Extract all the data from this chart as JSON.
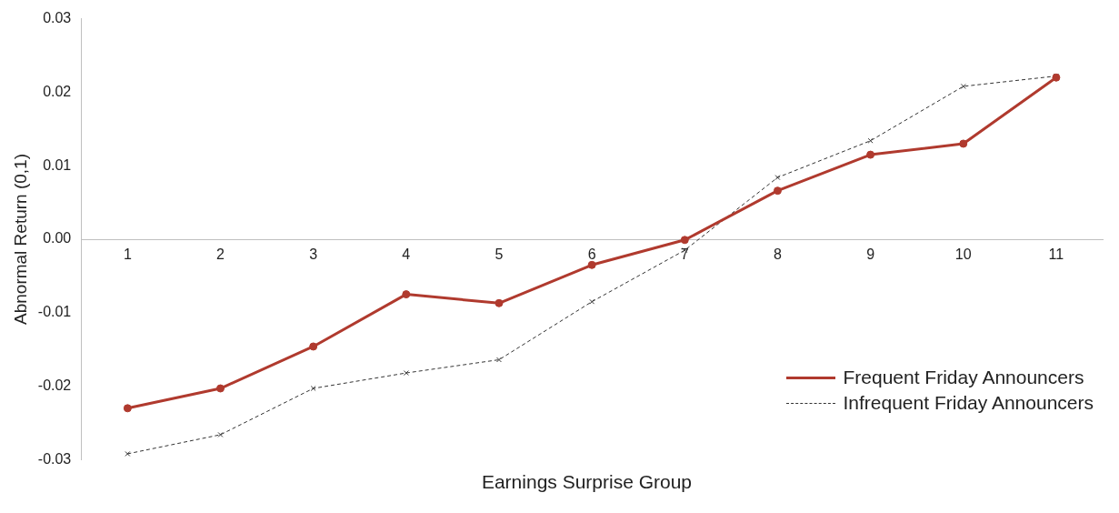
{
  "chart_data": {
    "type": "line",
    "xlabel": "Earnings Surprise Group",
    "ylabel": "Abnormal Return (0,1)",
    "categories": [
      "1",
      "2",
      "3",
      "4",
      "5",
      "6",
      "7",
      "8",
      "9",
      "10",
      "11"
    ],
    "series": [
      {
        "name": "Frequent Friday Announcers",
        "color": "#b03a2e",
        "marker": "circle",
        "line_style": "solid",
        "values": [
          -0.023,
          -0.0203,
          -0.0146,
          -0.0075,
          -0.0087,
          -0.0035,
          -0.0001,
          0.0066,
          0.0115,
          0.013,
          0.022
        ]
      },
      {
        "name": "Infrequent Friday Announcers",
        "color": "#333333",
        "marker": "cross",
        "line_style": "dashed",
        "values": [
          -0.0292,
          -0.0266,
          -0.0203,
          -0.0182,
          -0.0164,
          -0.0085,
          -0.0015,
          0.0084,
          0.0134,
          0.0208,
          0.0222
        ]
      }
    ],
    "ylim": [
      -0.03,
      0.03
    ],
    "yticks": [
      {
        "value": -0.03,
        "label": "-0.03"
      },
      {
        "value": -0.02,
        "label": "-0.02"
      },
      {
        "value": -0.01,
        "label": "-0.01"
      },
      {
        "value": 0,
        "label": "0.00"
      },
      0.01,
      0.02,
      0.03
    ],
    "grid": false,
    "legend": "bottom right"
  }
}
